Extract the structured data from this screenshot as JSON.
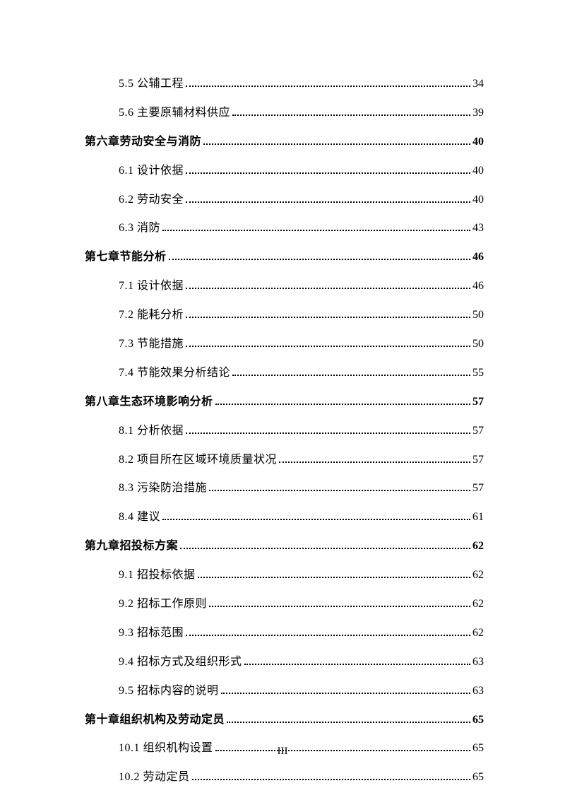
{
  "entries": [
    {
      "level": "section",
      "label": "5.5 公辅工程",
      "page": "34"
    },
    {
      "level": "section",
      "label": "5.6 主要原辅材料供应",
      "page": "39"
    },
    {
      "level": "chapter",
      "label": "第六章劳动安全与消防",
      "page": "40"
    },
    {
      "level": "section",
      "label": "6.1 设计依据",
      "page": "40"
    },
    {
      "level": "section",
      "label": "6.2 劳动安全",
      "page": "40"
    },
    {
      "level": "section",
      "label": "6.3 消防",
      "page": "43"
    },
    {
      "level": "chapter",
      "label": "第七章节能分析",
      "page": "46"
    },
    {
      "level": "section",
      "label": "7.1 设计依据",
      "page": "46"
    },
    {
      "level": "section",
      "label": "7.2 能耗分析",
      "page": "50"
    },
    {
      "level": "section",
      "label": "7.3 节能措施",
      "page": "50"
    },
    {
      "level": "section",
      "label": "7.4 节能效果分析结论",
      "page": "55"
    },
    {
      "level": "chapter",
      "label": "第八章生态环境影响分析",
      "page": "57"
    },
    {
      "level": "section",
      "label": "8.1 分析依据",
      "page": "57"
    },
    {
      "level": "section",
      "label": "8.2 项目所在区域环境质量状况",
      "page": "57"
    },
    {
      "level": "section",
      "label": "8.3 污染防治措施",
      "page": "57"
    },
    {
      "level": "section",
      "label": "8.4 建议",
      "page": "61"
    },
    {
      "level": "chapter",
      "label": "第九章招投标方案",
      "page": "62"
    },
    {
      "level": "section",
      "label": "9.1 招投标依据",
      "page": "62"
    },
    {
      "level": "section",
      "label": "9.2 招标工作原则",
      "page": "62"
    },
    {
      "level": "section",
      "label": "9.3 招标范围",
      "page": "62"
    },
    {
      "level": "section",
      "label": "9.4 招标方式及组织形式",
      "page": "63"
    },
    {
      "level": "section",
      "label": "9.5 招标内容的说明",
      "page": "63"
    },
    {
      "level": "chapter",
      "label": "第十章组织机构及劳动定员",
      "page": "65"
    },
    {
      "level": "section",
      "label": "10.1 组织机构设置",
      "page": "65"
    },
    {
      "level": "section",
      "label": "10.2 劳动定员",
      "page": "65"
    }
  ],
  "pageNumber": "III"
}
